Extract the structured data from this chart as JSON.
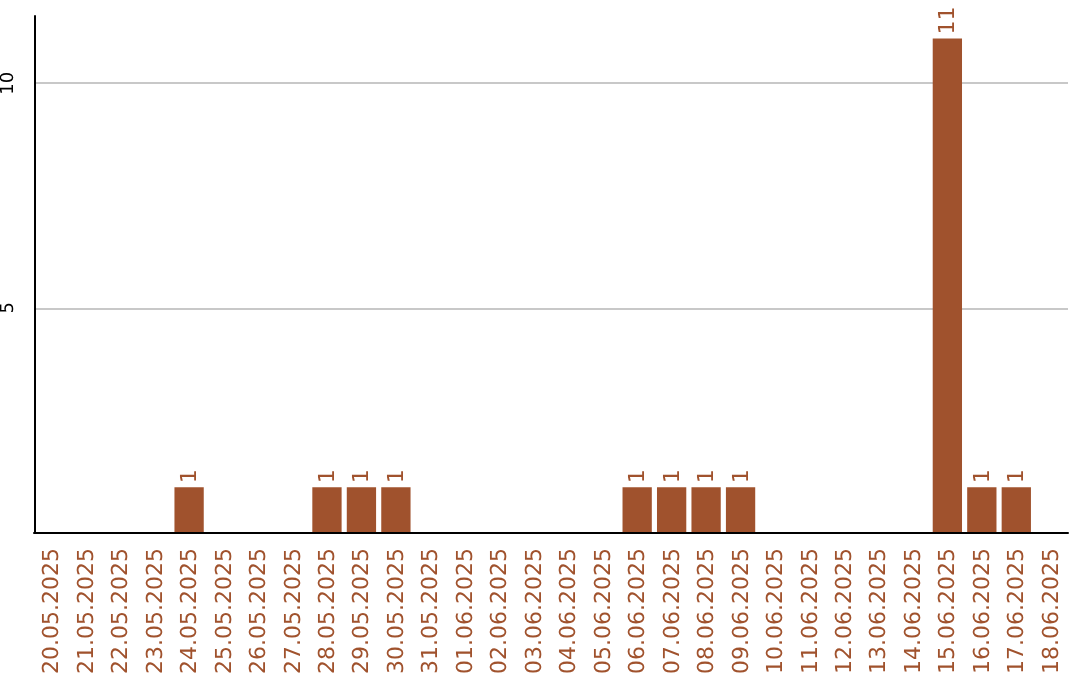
{
  "chart_data": {
    "type": "bar",
    "categories": [
      "20.05.2025",
      "21.05.2025",
      "22.05.2025",
      "23.05.2025",
      "24.05.2025",
      "25.05.2025",
      "26.05.2025",
      "27.05.2025",
      "28.05.2025",
      "29.05.2025",
      "30.05.2025",
      "31.05.2025",
      "01.06.2025",
      "02.06.2025",
      "03.06.2025",
      "04.06.2025",
      "05.06.2025",
      "06.06.2025",
      "07.06.2025",
      "08.06.2025",
      "09.06.2025",
      "10.06.2025",
      "11.06.2025",
      "12.06.2025",
      "13.06.2025",
      "14.06.2025",
      "15.06.2025",
      "16.06.2025",
      "17.06.2025",
      "18.06.2025"
    ],
    "values": [
      0,
      0,
      0,
      0,
      1,
      0,
      0,
      0,
      1,
      1,
      1,
      0,
      0,
      0,
      0,
      0,
      0,
      1,
      1,
      1,
      1,
      0,
      0,
      0,
      0,
      0,
      11,
      1,
      1,
      0
    ],
    "value_labels": [
      null,
      null,
      null,
      null,
      "1",
      null,
      null,
      null,
      "1",
      "1",
      "1",
      null,
      null,
      null,
      null,
      null,
      null,
      "1",
      "1",
      "1",
      "1",
      null,
      null,
      null,
      null,
      null,
      "11",
      "1",
      "1",
      null
    ],
    "color": "#a0522d",
    "ylim": [
      0,
      11.5
    ],
    "yticks": [
      5,
      10
    ],
    "grid": "y"
  }
}
